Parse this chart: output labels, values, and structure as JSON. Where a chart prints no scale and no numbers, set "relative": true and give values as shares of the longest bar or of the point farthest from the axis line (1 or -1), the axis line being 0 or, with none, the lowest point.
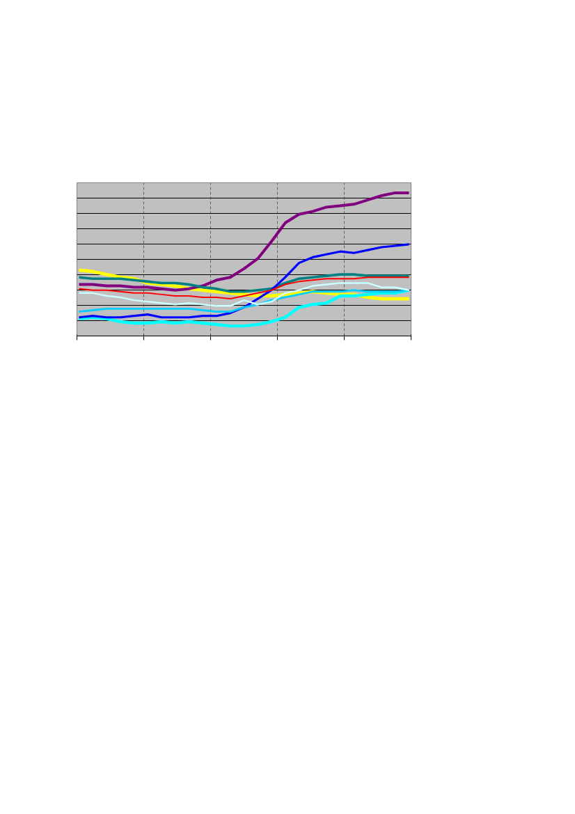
{
  "chart_data": {
    "type": "line",
    "relative": true,
    "grid": true,
    "line_style": "solid",
    "marker": "none",
    "categories": [
      null,
      null,
      null,
      null,
      null,
      null,
      null,
      null,
      null,
      null,
      null,
      null,
      null,
      null,
      null,
      null,
      null,
      null,
      null,
      null,
      null,
      null,
      null,
      null,
      null
    ],
    "series": [
      {
        "color": "#ffff00",
        "values": [
          0.46,
          0.45,
          0.43,
          0.41,
          0.4,
          0.37,
          0.36,
          0.35,
          0.33,
          0.32,
          0.31,
          0.3,
          0.29,
          0.28,
          0.28,
          0.29,
          0.3,
          0.31,
          0.3,
          0.29,
          0.29,
          0.27,
          0.26,
          0.26,
          0.26
        ]
      },
      {
        "color": "#00ffff",
        "values": [
          0.12,
          0.13,
          0.12,
          0.1,
          0.09,
          0.09,
          0.1,
          0.09,
          0.1,
          0.09,
          0.08,
          0.07,
          0.07,
          0.08,
          0.1,
          0.13,
          0.2,
          0.22,
          0.23,
          0.28,
          0.28,
          0.29,
          0.3,
          0.3,
          0.32
        ]
      },
      {
        "color": "#800080",
        "values": [
          0.36,
          0.36,
          0.35,
          0.35,
          0.34,
          0.34,
          0.33,
          0.32,
          0.33,
          0.35,
          0.39,
          0.41,
          0.47,
          0.54,
          0.66,
          0.79,
          0.85,
          0.87,
          0.9,
          0.91,
          0.92,
          0.95,
          0.98,
          1.0,
          1.0
        ]
      },
      {
        "color": "#008080",
        "values": [
          0.41,
          0.4,
          0.4,
          0.4,
          0.39,
          0.38,
          0.37,
          0.37,
          0.36,
          0.34,
          0.33,
          0.31,
          0.31,
          0.32,
          0.33,
          0.37,
          0.4,
          0.41,
          0.42,
          0.43,
          0.43,
          0.42,
          0.42,
          0.42,
          0.42
        ]
      },
      {
        "color": "#0000ff",
        "values": [
          0.13,
          0.14,
          0.13,
          0.13,
          0.14,
          0.15,
          0.13,
          0.13,
          0.13,
          0.14,
          0.14,
          0.16,
          0.2,
          0.26,
          0.32,
          0.41,
          0.51,
          0.55,
          0.57,
          0.59,
          0.58,
          0.6,
          0.62,
          0.63,
          0.64
        ]
      },
      {
        "color": "#00ccff",
        "values": [
          0.17,
          0.18,
          0.19,
          0.19,
          0.19,
          0.19,
          0.19,
          0.19,
          0.19,
          0.18,
          0.17,
          0.17,
          0.2,
          0.22,
          0.25,
          0.27,
          0.29,
          0.31,
          0.31,
          0.31,
          0.32,
          0.31,
          0.31,
          0.31,
          0.32
        ]
      },
      {
        "color": "#ccffff",
        "values": [
          0.3,
          0.3,
          0.28,
          0.27,
          0.25,
          0.24,
          0.23,
          0.22,
          0.23,
          0.22,
          0.21,
          0.21,
          0.25,
          0.22,
          0.24,
          0.3,
          0.32,
          0.35,
          0.36,
          0.37,
          0.37,
          0.37,
          0.34,
          0.34,
          0.32
        ]
      },
      {
        "color": "#ff0000",
        "values": [
          0.33,
          0.32,
          0.32,
          0.31,
          0.3,
          0.3,
          0.29,
          0.28,
          0.28,
          0.27,
          0.27,
          0.26,
          0.28,
          0.3,
          0.32,
          0.36,
          0.38,
          0.39,
          0.4,
          0.4,
          0.4,
          0.41,
          0.41,
          0.41,
          0.41
        ]
      }
    ]
  }
}
